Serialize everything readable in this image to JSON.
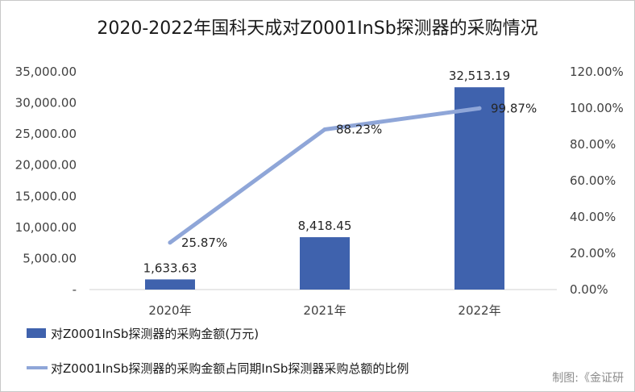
{
  "chart_data": {
    "type": "bar",
    "title": "2020-2022年国科天成对Z0001InSb探测器的采购情况",
    "categories": [
      "2020年",
      "2021年",
      "2022年"
    ],
    "series": [
      {
        "name": "对Z0001InSb探测器的采购金额(万元)",
        "type": "bar",
        "axis": "left",
        "values": [
          1633.63,
          8418.45,
          32513.19
        ],
        "labels": [
          "1,633.63",
          "8,418.45",
          "32,513.19"
        ],
        "color": "#3f62ad"
      },
      {
        "name": "对Z0001InSb探测器的采购金额占同期InSb探测器采购总额的比例",
        "type": "line",
        "axis": "right",
        "values": [
          25.87,
          88.23,
          99.87
        ],
        "labels": [
          "25.87%",
          "88.23%",
          "99.87%"
        ],
        "color": "#8fa6d8"
      }
    ],
    "y_left": {
      "ylim": [
        0,
        35000
      ],
      "ticks": [
        0,
        5000,
        10000,
        15000,
        20000,
        25000,
        30000,
        35000
      ],
      "tick_labels": [
        "-",
        "5,000.00",
        "10,000.00",
        "15,000.00",
        "20,000.00",
        "25,000.00",
        "30,000.00",
        "35,000.00"
      ]
    },
    "y_right": {
      "ylim": [
        0,
        120
      ],
      "ticks": [
        0,
        20,
        40,
        60,
        80,
        100,
        120
      ],
      "tick_labels": [
        "0.00%",
        "20.00%",
        "40.00%",
        "60.00%",
        "80.00%",
        "100.00%",
        "120.00%"
      ]
    },
    "grid": false,
    "legend": "bottom"
  },
  "credit": "制图:《金证研"
}
